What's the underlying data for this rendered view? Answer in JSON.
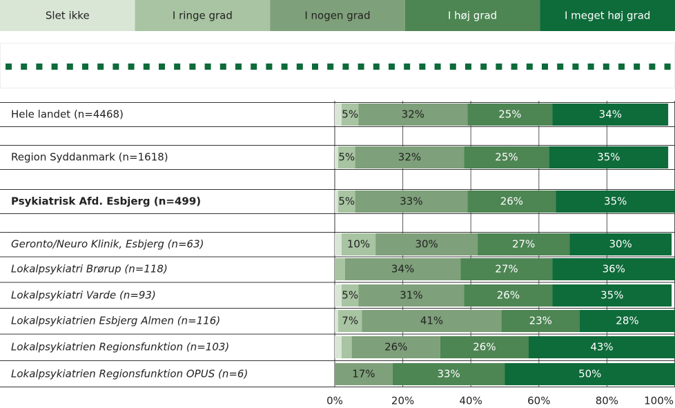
{
  "chart_data": {
    "type": "stacked_bar_horizontal",
    "categories": [
      "Hele landet (n=4468)",
      "Region Syddanmark (n=1618)",
      "Psykiatrisk Afd. Esbjerg (n=499)",
      "Geronto/Neuro Klinik, Esbjerg (n=63)",
      "Lokalpsykiatri Brørup (n=118)",
      "Lokalpsykiatri Varde (n=93)",
      "Lokalpsykiatrien Esbjerg Almen (n=116)",
      "Lokalpsykiatrien Regionsfunktion (n=103)",
      "Lokalpsykiatrien Regionsfunktion OPUS (n=6)"
    ],
    "row_styles": [
      "normal",
      "normal",
      "bold",
      "italic",
      "italic",
      "italic",
      "italic",
      "italic",
      "italic"
    ],
    "series": [
      {
        "name": "Slet ikke",
        "color": "#d9e6d6",
        "values": [
          2,
          1,
          1,
          2,
          0,
          2,
          1,
          2,
          0
        ],
        "value_labels": [
          null,
          null,
          null,
          null,
          null,
          null,
          null,
          null,
          null
        ]
      },
      {
        "name": "I ringe grad",
        "color": "#a8c4a2",
        "values": [
          5,
          5,
          5,
          10,
          3,
          5,
          7,
          3,
          0
        ],
        "value_labels": [
          "5%",
          "5%",
          "5%",
          "10%",
          null,
          "5%",
          "7%",
          null,
          null
        ]
      },
      {
        "name": "I nogen grad",
        "color": "#7ea07a",
        "values": [
          32,
          32,
          33,
          30,
          34,
          31,
          41,
          26,
          17
        ],
        "value_labels": [
          "32%",
          "32%",
          "33%",
          "30%",
          "34%",
          "31%",
          "41%",
          "26%",
          "17%"
        ]
      },
      {
        "name": "I høj grad",
        "color": "#4d8553",
        "values": [
          25,
          25,
          26,
          27,
          27,
          26,
          23,
          26,
          33
        ],
        "value_labels": [
          "25%",
          "25%",
          "26%",
          "27%",
          "27%",
          "26%",
          "23%",
          "26%",
          "33%"
        ]
      },
      {
        "name": "I meget høj grad",
        "color": "#0e6b3a",
        "values": [
          34,
          35,
          35,
          30,
          36,
          35,
          28,
          43,
          50
        ],
        "value_labels": [
          "34%",
          "35%",
          "35%",
          "30%",
          "36%",
          "35%",
          "28%",
          "43%",
          "50%"
        ]
      }
    ],
    "xlim": [
      0,
      100
    ],
    "xticks": [
      {
        "value": 0,
        "label": "0%"
      },
      {
        "value": 20,
        "label": "20%"
      },
      {
        "value": 40,
        "label": "40%"
      },
      {
        "value": 60,
        "label": "60%"
      },
      {
        "value": 80,
        "label": "80%"
      },
      {
        "value": 100,
        "label": "100%"
      }
    ],
    "grid": true
  }
}
